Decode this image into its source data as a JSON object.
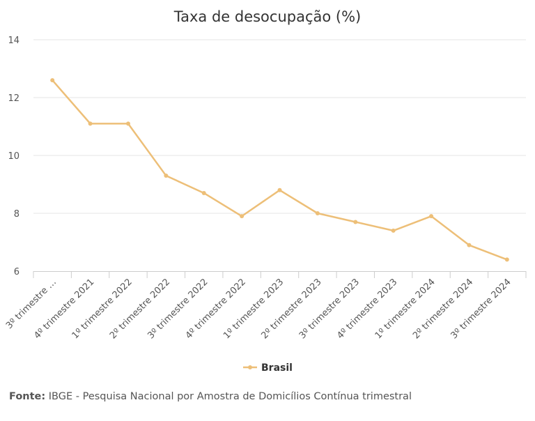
{
  "chart_data": {
    "type": "line",
    "title": "Taxa de desocupação (%)",
    "categories": [
      "3º trimestre …",
      "4º trimestre 2021",
      "1º trimestre 2022",
      "2º trimestre 2022",
      "3º trimestre 2022",
      "4º trimestre 2022",
      "1º trimestre 2023",
      "2º trimestre 2023",
      "3º trimestre 2023",
      "4º trimestre 2023",
      "1º trimestre 2024",
      "2º trimestre 2024",
      "3º trimestre 2024"
    ],
    "series": [
      {
        "name": "Brasil",
        "values": [
          12.6,
          11.1,
          11.1,
          9.3,
          8.7,
          7.9,
          8.8,
          8.0,
          7.7,
          7.4,
          7.9,
          6.9,
          6.4
        ]
      }
    ],
    "ylim": [
      6,
      14
    ],
    "yticks": [
      "6",
      "8",
      "10",
      "12",
      "14"
    ],
    "xlabel": "",
    "ylabel": "",
    "grid": true,
    "legend_position": "bottom-center",
    "color": "#EDBF78"
  },
  "source": {
    "label": "Fonte:",
    "text": "IBGE - Pesquisa Nacional por Amostra de Domicílios Contínua trimestral"
  }
}
